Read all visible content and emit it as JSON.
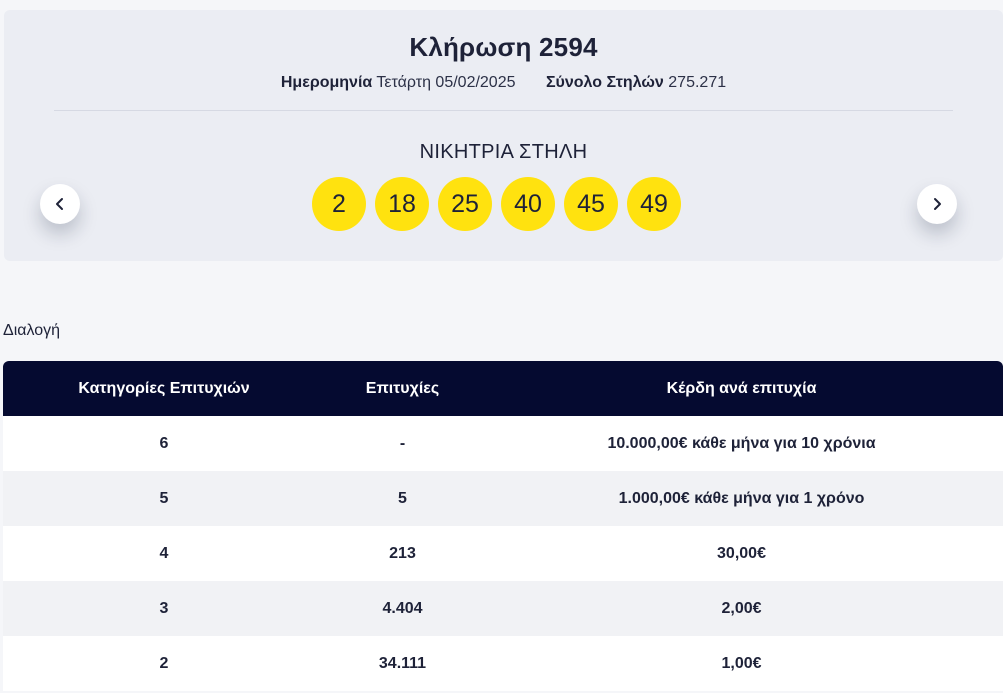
{
  "draw": {
    "title": "Κλήρωση 2594",
    "date_label": "Ημερομηνία",
    "date_value": "Τετάρτη 05/02/2025",
    "total_label": "Σύνολο Στηλών",
    "total_value": "275.271",
    "winning_label": "ΝΙΚΗΤΡΙΑ ΣΤΗΛΗ",
    "numbers": [
      "2",
      "18",
      "25",
      "40",
      "45",
      "49"
    ],
    "ball_color": "#ffe20f",
    "prev_icon": "chevron-left-icon",
    "next_icon": "chevron-right-icon"
  },
  "section_label": "Διαλογή",
  "table": {
    "headers": [
      "Κατηγορίες Επιτυχιών",
      "Επιτυχίες",
      "Κέρδη ανά επιτυχία"
    ],
    "header_color": "#050a30",
    "rows": [
      [
        "6",
        "-",
        "10.000,00€ κάθε μήνα για 10 χρόνια"
      ],
      [
        "5",
        "5",
        "1.000,00€ κάθε μήνα για 1 χρόνο"
      ],
      [
        "4",
        "213",
        "30,00€"
      ],
      [
        "3",
        "4.404",
        "2,00€"
      ],
      [
        "2",
        "34.111",
        "1,00€"
      ]
    ]
  }
}
